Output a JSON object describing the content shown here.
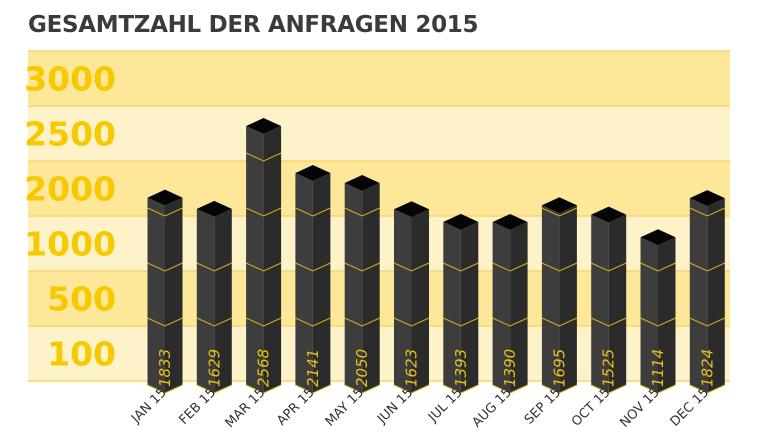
{
  "chart_data": {
    "type": "bar",
    "title": "GESAMTZAHL DER ANFRAGEN 2015",
    "categories": [
      "JAN 15",
      "FEB 15",
      "MAR 15",
      "APR 15",
      "MAY 15",
      "JUN 15",
      "JUL 15",
      "AUG 15",
      "SEP 15",
      "OCT 15",
      "NOV 15",
      "DEC 15"
    ],
    "values": [
      1833,
      1629,
      2568,
      2141,
      2050,
      1623,
      1393,
      1390,
      1695,
      1525,
      1114,
      1824
    ],
    "y_tick_labels": [
      "3000",
      "2500",
      "2000",
      "1000",
      "500",
      "100"
    ],
    "xlabel": "",
    "ylabel": "",
    "grid": true,
    "colors": {
      "band_dark": "#fde89a",
      "band_light": "#fef3c8",
      "tick": "#f8c800",
      "bar_left": "#3d3d3d",
      "bar_right": "#2b2b2b",
      "bar_top": "#050505",
      "bar_line": "#d4b21a",
      "title": "#3b3b3b"
    }
  }
}
